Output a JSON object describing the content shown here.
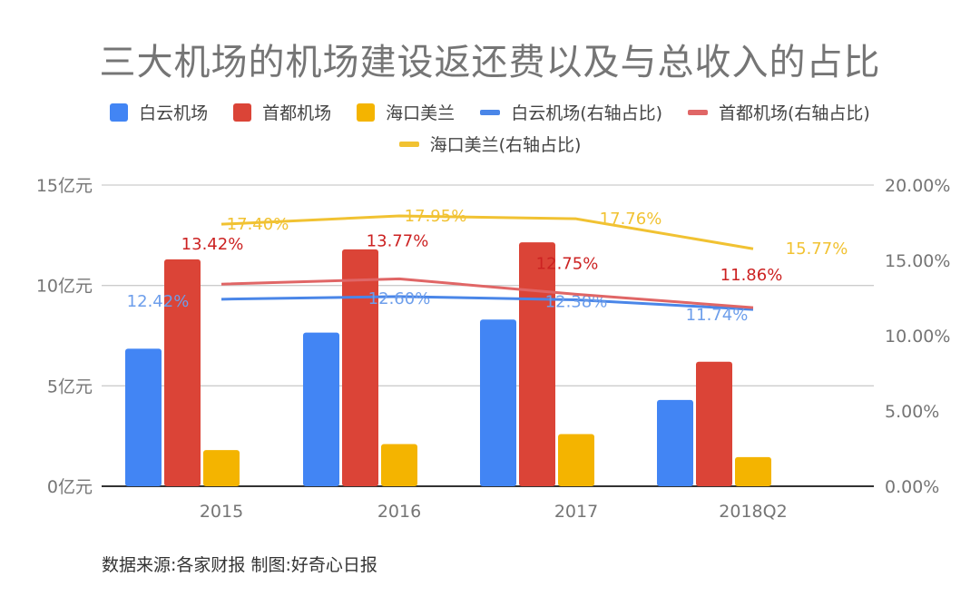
{
  "title": "三大机场的机场建设返还费以及与总收入的占比",
  "legend": [
    {
      "label": "白云机场",
      "kind": "bar",
      "color": "#4285F4"
    },
    {
      "label": "首都机场",
      "kind": "bar",
      "color": "#DB4437"
    },
    {
      "label": "海口美兰",
      "kind": "bar",
      "color": "#F4B400"
    },
    {
      "label": "白云机场(右轴占比)",
      "kind": "line",
      "color": "#4A86E8"
    },
    {
      "label": "首都机场(右轴占比)",
      "kind": "line",
      "color": "#E06666"
    },
    {
      "label": "海口美兰(右轴占比)",
      "kind": "line",
      "color": "#F1C232"
    }
  ],
  "footer": "数据来源:各家财报  制图:好奇心日报",
  "chart_data": {
    "type": "bar",
    "title": "三大机场的机场建设返还费以及与总收入的占比",
    "categories": [
      "2015",
      "2016",
      "2017",
      "2018Q2"
    ],
    "xlabel": "",
    "ylabel": "",
    "ylim": [
      0,
      15
    ],
    "y_ticks": [
      "0亿元",
      "5亿元",
      "10亿元",
      "15亿元"
    ],
    "y_tick_values": [
      0,
      5,
      10,
      15
    ],
    "y2lim": [
      0,
      20
    ],
    "y2_ticks": [
      "0.00%",
      "5.00%",
      "10.00%",
      "15.00%",
      "20.00%"
    ],
    "y2_tick_values": [
      0,
      5,
      10,
      15,
      20
    ],
    "grid": true,
    "legend_position": "top",
    "bar_series": [
      {
        "name": "白云机场",
        "color": "#4285F4",
        "values": [
          6.85,
          7.65,
          8.3,
          4.3
        ]
      },
      {
        "name": "首都机场",
        "color": "#DB4437",
        "values": [
          11.3,
          11.8,
          12.15,
          6.2
        ]
      },
      {
        "name": "海口美兰",
        "color": "#F4B400",
        "values": [
          1.8,
          2.1,
          2.6,
          1.45
        ]
      }
    ],
    "line_series": [
      {
        "name": "白云机场(右轴占比)",
        "color": "#4A86E8",
        "label_color": "#6D9EEB",
        "axis": "right",
        "values": [
          12.42,
          12.6,
          12.38,
          11.74
        ],
        "labels": [
          "12.42%",
          "12.60%",
          "12.38%",
          "11.74%"
        ]
      },
      {
        "name": "首都机场(右轴占比)",
        "color": "#E06666",
        "label_color": "#CC2222",
        "axis": "right",
        "values": [
          13.42,
          13.77,
          12.75,
          11.86
        ],
        "labels": [
          "13.42%",
          "13.77%",
          "12.75%",
          "11.86%"
        ]
      },
      {
        "name": "海口美兰(右轴占比)",
        "color": "#F1C232",
        "label_color": "#F1C232",
        "axis": "right",
        "values": [
          17.4,
          17.95,
          17.76,
          15.77
        ],
        "labels": [
          "17.40%",
          "17.95%",
          "17.76%",
          "15.77%"
        ]
      }
    ]
  }
}
